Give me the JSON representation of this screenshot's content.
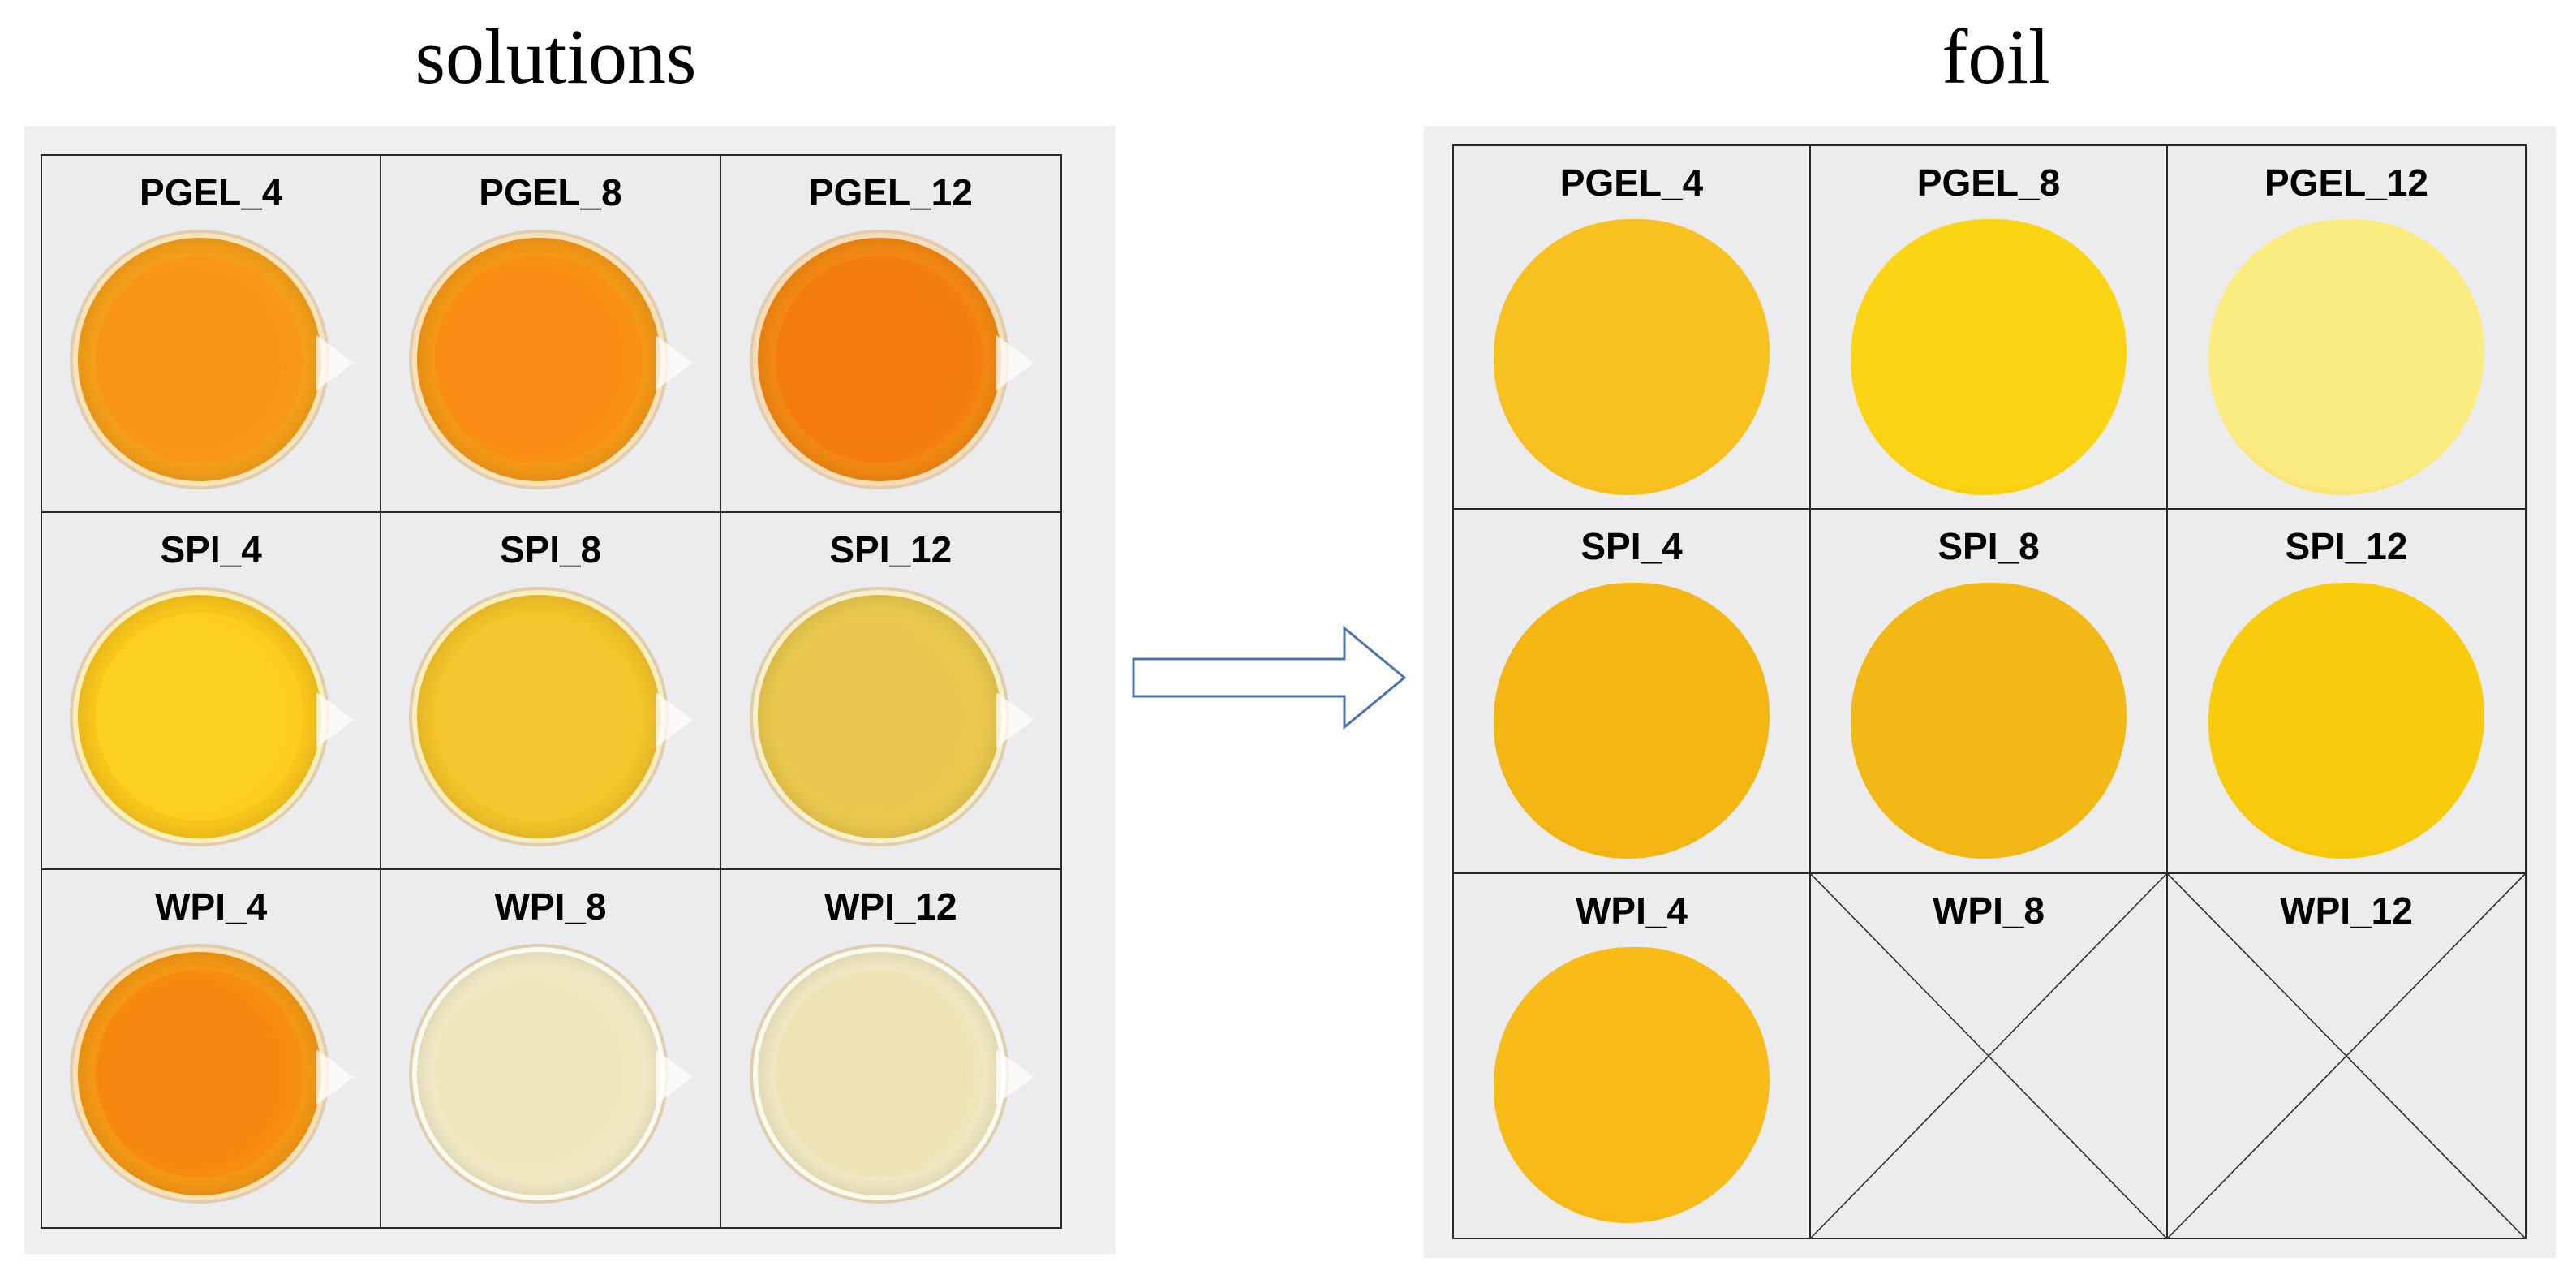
{
  "titles": {
    "solutions": "solutions",
    "foil": "foil"
  },
  "solutions": {
    "cells": [
      {
        "label": "PGEL_4",
        "color": "#f7a11a",
        "center": "#f99318"
      },
      {
        "label": "PGEL_8",
        "color": "#f79a17",
        "center": "#f98c14"
      },
      {
        "label": "PGEL_12",
        "color": "#f58a12",
        "center": "#f27a0e"
      },
      {
        "label": "SPI_4",
        "color": "#fbc81c",
        "center": "#fcd020"
      },
      {
        "label": "SPI_8",
        "color": "#f6c52a",
        "center": "#f3c630"
      },
      {
        "label": "SPI_12",
        "color": "#ecca4e",
        "center": "#e9c74e"
      },
      {
        "label": "WPI_4",
        "color": "#f79a15",
        "center": "#f68710"
      },
      {
        "label": "WPI_8",
        "color": "#f4ecc8",
        "center": "#efe6bc"
      },
      {
        "label": "WPI_12",
        "color": "#f3ebc4",
        "center": "#ece2b4"
      }
    ]
  },
  "foil": {
    "cells": [
      {
        "label": "PGEL_4",
        "color": "#f8c120",
        "empty": false
      },
      {
        "label": "PGEL_8",
        "color": "#fbd414",
        "empty": false
      },
      {
        "label": "PGEL_12",
        "color": "#fbec82",
        "empty": false
      },
      {
        "label": "SPI_4",
        "color": "#f3b613",
        "empty": false
      },
      {
        "label": "SPI_8",
        "color": "#f2b815",
        "empty": false
      },
      {
        "label": "SPI_12",
        "color": "#f8cb0c",
        "empty": false
      },
      {
        "label": "WPI_4",
        "color": "#f9bb17",
        "empty": false
      },
      {
        "label": "WPI_8",
        "color": "",
        "empty": true
      },
      {
        "label": "WPI_12",
        "color": "",
        "empty": true
      }
    ]
  }
}
